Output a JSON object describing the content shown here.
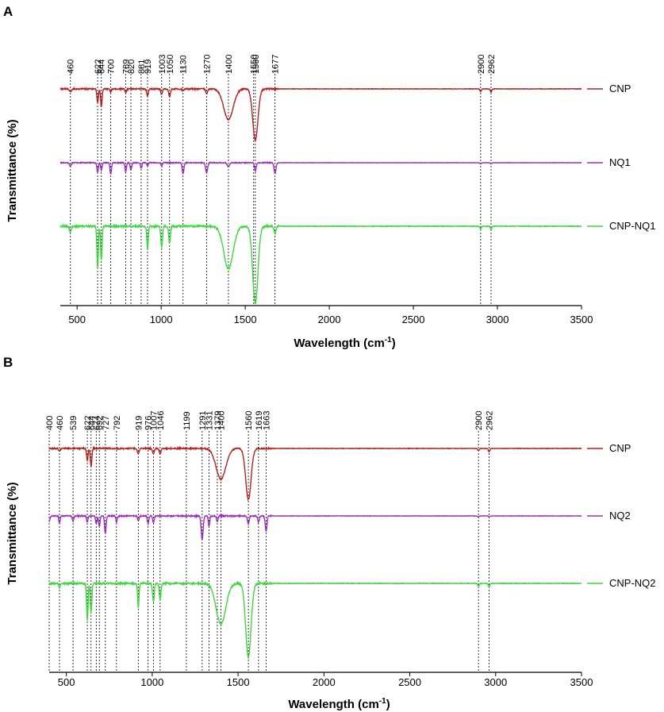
{
  "chart_data": [
    {
      "panel": "A",
      "type": "line",
      "xlabel": "Wavelength (cm",
      "xlabel_sup": "-1",
      "xlabel_suffix": ")",
      "ylabel": "Transmittance (%)",
      "xlim": [
        400,
        3500
      ],
      "xticks": [
        500,
        1000,
        1500,
        2000,
        2500,
        3000,
        3500
      ],
      "peaks": [
        460,
        622,
        644,
        700,
        789,
        820,
        881,
        919,
        1003,
        1050,
        1130,
        1270,
        1400,
        1550,
        1560,
        1677,
        2900,
        2962
      ],
      "series": [
        {
          "name": "CNP",
          "color": "#b22222",
          "baseline": 0.78,
          "dips": [
            [
              460,
              0.05,
              8
            ],
            [
              622,
              0.25,
              6
            ],
            [
              644,
              0.33,
              6
            ],
            [
              700,
              0.05,
              6
            ],
            [
              789,
              0.08,
              6
            ],
            [
              919,
              0.12,
              7
            ],
            [
              1003,
              0.1,
              7
            ],
            [
              1050,
              0.14,
              7
            ],
            [
              1130,
              0.04,
              6
            ],
            [
              1270,
              0.08,
              8
            ],
            [
              1400,
              0.55,
              40
            ],
            [
              1560,
              0.92,
              22
            ],
            [
              2900,
              0.05,
              6
            ],
            [
              2962,
              0.06,
              6
            ]
          ]
        },
        {
          "name": "NQ1",
          "color": "#9b30b8",
          "baseline": 0.56,
          "dips": [
            [
              460,
              0.1,
              7
            ],
            [
              622,
              0.25,
              6
            ],
            [
              644,
              0.2,
              6
            ],
            [
              700,
              0.3,
              6
            ],
            [
              789,
              0.25,
              6
            ],
            [
              820,
              0.2,
              6
            ],
            [
              881,
              0.15,
              6
            ],
            [
              919,
              0.08,
              6
            ],
            [
              1003,
              0.1,
              6
            ],
            [
              1130,
              0.3,
              7
            ],
            [
              1270,
              0.28,
              8
            ],
            [
              1400,
              0.1,
              10
            ],
            [
              1560,
              0.22,
              7
            ],
            [
              1677,
              0.3,
              8
            ],
            [
              2900,
              0.03,
              6
            ],
            [
              2962,
              0.03,
              6
            ]
          ]
        },
        {
          "name": "CNP-NQ1",
          "color": "#3fd63f",
          "baseline": 0.35,
          "dips": [
            [
              460,
              0.08,
              7
            ],
            [
              622,
              0.55,
              6
            ],
            [
              644,
              0.45,
              6
            ],
            [
              919,
              0.3,
              6
            ],
            [
              1003,
              0.28,
              7
            ],
            [
              1050,
              0.22,
              7
            ],
            [
              1400,
              0.55,
              40
            ],
            [
              1560,
              1.0,
              22
            ],
            [
              1677,
              0.1,
              8
            ],
            [
              2900,
              0.04,
              6
            ],
            [
              2962,
              0.05,
              6
            ]
          ]
        }
      ]
    },
    {
      "panel": "B",
      "type": "line",
      "xlabel": "Wavelength (cm",
      "xlabel_sup": "-1",
      "xlabel_suffix": ")",
      "ylabel": "Transmittance (%)",
      "xlim": [
        400,
        3500
      ],
      "xticks": [
        500,
        1000,
        1500,
        2000,
        2500,
        3000,
        3500
      ],
      "peaks": [
        400,
        460,
        539,
        622,
        644,
        674,
        692,
        727,
        792,
        919,
        976,
        1007,
        1046,
        1199,
        1291,
        1331,
        1379,
        1400,
        1560,
        1619,
        1663,
        2900,
        2962
      ],
      "series": [
        {
          "name": "CNP",
          "color": "#b22222",
          "baseline": 0.8,
          "dips": [
            [
              460,
              0.04,
              7
            ],
            [
              622,
              0.22,
              6
            ],
            [
              644,
              0.33,
              6
            ],
            [
              919,
              0.1,
              7
            ],
            [
              1007,
              0.1,
              7
            ],
            [
              1046,
              0.1,
              7
            ],
            [
              1400,
              0.55,
              40
            ],
            [
              1560,
              0.92,
              22
            ],
            [
              2900,
              0.04,
              6
            ],
            [
              2962,
              0.06,
              6
            ]
          ]
        },
        {
          "name": "NQ2",
          "color": "#9b30b8",
          "baseline": 0.55,
          "dips": [
            [
              400,
              0.12,
              5
            ],
            [
              460,
              0.15,
              5
            ],
            [
              539,
              0.1,
              6
            ],
            [
              622,
              0.12,
              6
            ],
            [
              674,
              0.15,
              6
            ],
            [
              692,
              0.2,
              6
            ],
            [
              727,
              0.35,
              6
            ],
            [
              792,
              0.12,
              6
            ],
            [
              919,
              0.1,
              6
            ],
            [
              976,
              0.15,
              6
            ],
            [
              1007,
              0.12,
              6
            ],
            [
              1291,
              0.45,
              8
            ],
            [
              1331,
              0.2,
              6
            ],
            [
              1379,
              0.12,
              6
            ],
            [
              1560,
              0.15,
              7
            ],
            [
              1619,
              0.12,
              6
            ],
            [
              1663,
              0.3,
              7
            ],
            [
              2900,
              0.02,
              6
            ],
            [
              2962,
              0.02,
              6
            ]
          ]
        },
        {
          "name": "CNP-NQ2",
          "color": "#3fd63f",
          "baseline": 0.33,
          "dips": [
            [
              460,
              0.05,
              7
            ],
            [
              622,
              0.5,
              6
            ],
            [
              644,
              0.4,
              6
            ],
            [
              919,
              0.32,
              6
            ],
            [
              1007,
              0.25,
              7
            ],
            [
              1046,
              0.22,
              7
            ],
            [
              1400,
              0.55,
              40
            ],
            [
              1560,
              1.0,
              22
            ],
            [
              2900,
              0.04,
              6
            ],
            [
              2962,
              0.05,
              6
            ]
          ]
        }
      ]
    }
  ]
}
